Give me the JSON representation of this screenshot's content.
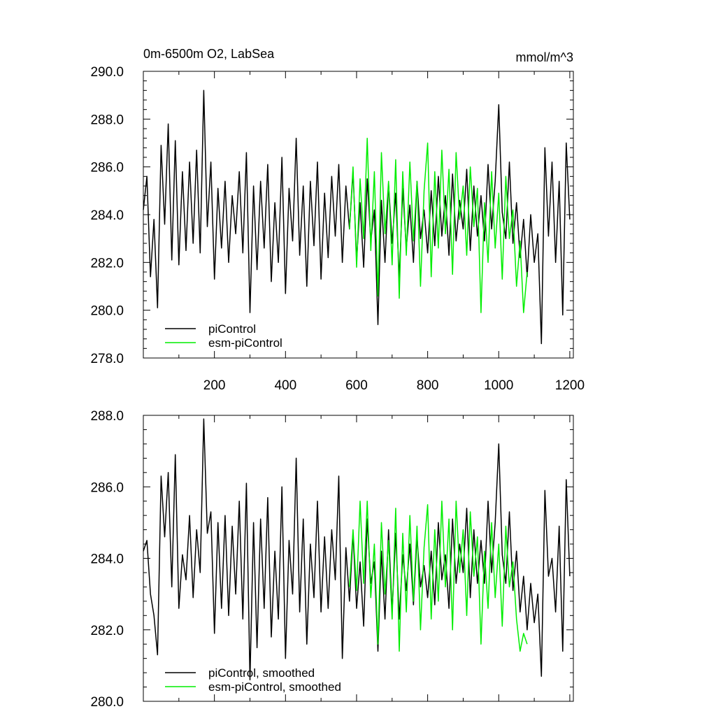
{
  "chart_data": [
    {
      "type": "line",
      "title": "0m-6500m O2, LabSea",
      "units": "mmol/m^3",
      "xlim": [
        0,
        1210
      ],
      "ylim": [
        278.0,
        290.0
      ],
      "yticks": [
        278,
        280,
        282,
        284,
        286,
        288,
        290
      ],
      "ytick_labels": [
        "278.0",
        "280.0",
        "282.0",
        "284.0",
        "286.0",
        "288.0",
        "290.0"
      ],
      "xticks": [
        200,
        400,
        600,
        800,
        1000,
        1200
      ],
      "xtick_labels": [
        "200",
        "400",
        "600",
        "800",
        "1000",
        "1200"
      ],
      "legend_position": "bottom-left",
      "series": [
        {
          "name": "piControl",
          "color": "#000000",
          "x": [
            0,
            10,
            20,
            30,
            40,
            50,
            60,
            70,
            80,
            90,
            100,
            110,
            120,
            130,
            140,
            150,
            160,
            170,
            180,
            190,
            200,
            210,
            220,
            230,
            240,
            250,
            260,
            270,
            280,
            290,
            300,
            310,
            320,
            330,
            340,
            350,
            360,
            370,
            380,
            390,
            400,
            410,
            420,
            430,
            440,
            450,
            460,
            470,
            480,
            490,
            500,
            510,
            520,
            530,
            540,
            550,
            560,
            570,
            580,
            590,
            600,
            610,
            620,
            630,
            640,
            650,
            660,
            670,
            680,
            690,
            700,
            710,
            720,
            730,
            740,
            750,
            760,
            770,
            780,
            790,
            800,
            810,
            820,
            830,
            840,
            850,
            860,
            870,
            880,
            890,
            900,
            910,
            920,
            930,
            940,
            950,
            960,
            970,
            980,
            990,
            1000,
            1010,
            1020,
            1030,
            1040,
            1050,
            1060,
            1070,
            1080,
            1090,
            1100,
            1110,
            1120,
            1130,
            1140,
            1150,
            1160,
            1170,
            1180,
            1190,
            1200
          ],
          "y": [
            284.2,
            285.6,
            281.4,
            283.8,
            280.1,
            286.9,
            283.6,
            287.8,
            282.1,
            287.1,
            281.9,
            285.8,
            282.5,
            286.2,
            282.8,
            286.7,
            282.4,
            289.2,
            283.5,
            286.2,
            281.3,
            285.1,
            282.6,
            285.4,
            282.0,
            284.8,
            283.2,
            285.8,
            282.4,
            286.6,
            279.9,
            285.2,
            281.7,
            285.4,
            282.6,
            286.1,
            281.2,
            284.5,
            282.0,
            286.4,
            280.7,
            285.1,
            282.9,
            287.2,
            282.3,
            285.2,
            281.0,
            285.4,
            282.7,
            286.2,
            281.3,
            284.9,
            282.2,
            285.6,
            283.1,
            286.1,
            282.0,
            285.2,
            283.4,
            285.8,
            282.1,
            284.5,
            281.8,
            285.5,
            282.9,
            284.2,
            279.4,
            284.6,
            282.0,
            285.3,
            282.8,
            284.9,
            281.3,
            285.1,
            282.6,
            284.4,
            282.0,
            285.4,
            283.0,
            284.2,
            282.4,
            285.0,
            282.7,
            285.6,
            283.1,
            284.8,
            282.3,
            285.7,
            282.9,
            284.6,
            283.4,
            285.9,
            282.5,
            285.2,
            283.1,
            284.8,
            282.9,
            286.1,
            283.4,
            285.4,
            288.6,
            284.1,
            283.0,
            286.2,
            282.8,
            284.5,
            282.2,
            283.8,
            281.4,
            284.0,
            282.0,
            283.2,
            278.6,
            286.8,
            283.1,
            286.2,
            282.0,
            285.4,
            279.8,
            287.0,
            283.8
          ]
        },
        {
          "name": "esm-piControl",
          "color": "#00ee00",
          "x": [
            580,
            590,
            600,
            610,
            620,
            630,
            640,
            650,
            660,
            670,
            680,
            690,
            700,
            710,
            720,
            730,
            740,
            750,
            760,
            770,
            780,
            790,
            800,
            810,
            820,
            830,
            840,
            850,
            860,
            870,
            880,
            890,
            900,
            910,
            920,
            930,
            940,
            950,
            960,
            970,
            980,
            990,
            1000,
            1010,
            1020,
            1030,
            1040,
            1050,
            1060,
            1070,
            1080
          ],
          "y": [
            283.4,
            286.0,
            281.8,
            285.5,
            283.0,
            287.2,
            282.5,
            285.8,
            280.6,
            286.6,
            283.2,
            285.4,
            281.9,
            286.3,
            280.5,
            285.8,
            282.3,
            286.2,
            282.9,
            285.4,
            281.0,
            285.0,
            287.0,
            281.4,
            285.8,
            282.6,
            286.7,
            283.2,
            285.9,
            281.5,
            286.6,
            283.8,
            285.2,
            282.3,
            286.0,
            283.5,
            285.1,
            279.9,
            284.5,
            282.0,
            285.8,
            282.6,
            284.9,
            281.3,
            285.6,
            283.0,
            284.2,
            281.0,
            282.9,
            279.9,
            281.6
          ]
        }
      ]
    },
    {
      "type": "line",
      "xlim": [
        0,
        1210
      ],
      "ylim": [
        280.0,
        288.0
      ],
      "yticks": [
        280,
        282,
        284,
        286,
        288
      ],
      "ytick_labels": [
        "280.0",
        "282.0",
        "284.0",
        "286.0",
        "288.0"
      ],
      "xticks": [
        200,
        400,
        600,
        800,
        1000,
        1200
      ],
      "legend_position": "bottom-left",
      "series": [
        {
          "name": "piControl, smoothed",
          "color": "#000000",
          "x": [
            0,
            10,
            20,
            30,
            40,
            50,
            60,
            70,
            80,
            90,
            100,
            110,
            120,
            130,
            140,
            150,
            160,
            170,
            180,
            190,
            200,
            210,
            220,
            230,
            240,
            250,
            260,
            270,
            280,
            290,
            300,
            310,
            320,
            330,
            340,
            350,
            360,
            370,
            380,
            390,
            400,
            410,
            420,
            430,
            440,
            450,
            460,
            470,
            480,
            490,
            500,
            510,
            520,
            530,
            540,
            550,
            560,
            570,
            580,
            590,
            600,
            610,
            620,
            630,
            640,
            650,
            660,
            670,
            680,
            690,
            700,
            710,
            720,
            730,
            740,
            750,
            760,
            770,
            780,
            790,
            800,
            810,
            820,
            830,
            840,
            850,
            860,
            870,
            880,
            890,
            900,
            910,
            920,
            930,
            940,
            950,
            960,
            970,
            980,
            990,
            1000,
            1010,
            1020,
            1030,
            1040,
            1050,
            1060,
            1070,
            1080,
            1090,
            1100,
            1110,
            1120,
            1130,
            1140,
            1150,
            1160,
            1170,
            1180,
            1190,
            1200
          ],
          "y": [
            284.2,
            284.5,
            283.0,
            282.4,
            281.3,
            286.3,
            284.6,
            286.4,
            283.2,
            286.9,
            282.6,
            284.1,
            283.4,
            285.2,
            282.9,
            284.8,
            283.6,
            287.9,
            284.7,
            285.3,
            281.9,
            285.0,
            282.6,
            285.2,
            282.4,
            284.9,
            283.0,
            285.6,
            282.3,
            286.1,
            280.6,
            285.0,
            281.5,
            285.1,
            282.6,
            285.7,
            281.8,
            284.2,
            282.3,
            286.0,
            281.2,
            284.5,
            283.0,
            286.8,
            282.5,
            285.1,
            281.6,
            284.4,
            282.9,
            285.6,
            282.5,
            284.6,
            282.6,
            284.8,
            283.4,
            286.3,
            281.2,
            284.3,
            282.8,
            284.7,
            282.6,
            283.9,
            282.1,
            285.1,
            283.3,
            283.9,
            281.4,
            284.2,
            282.3,
            284.8,
            282.5,
            284.7,
            282.3,
            284.1,
            283.1,
            284.4,
            282.7,
            284.6,
            283.2,
            283.8,
            282.9,
            284.2,
            282.7,
            285.0,
            283.4,
            284.1,
            282.6,
            285.1,
            283.3,
            284.4,
            283.6,
            285.4,
            282.9,
            284.8,
            283.3,
            284.5,
            283.3,
            285.6,
            283.6,
            285.0,
            287.2,
            284.1,
            283.3,
            285.3,
            283.1,
            284.2,
            282.5,
            283.5,
            282.0,
            283.3,
            282.2,
            283.0,
            280.7,
            285.9,
            283.5,
            284.0,
            282.5,
            284.9,
            281.4,
            286.2,
            283.5
          ]
        },
        {
          "name": "esm-piControl, smoothed",
          "color": "#00ee00",
          "x": [
            580,
            590,
            600,
            610,
            620,
            630,
            640,
            650,
            660,
            670,
            680,
            690,
            700,
            710,
            720,
            730,
            740,
            750,
            760,
            770,
            780,
            790,
            800,
            810,
            820,
            830,
            840,
            850,
            860,
            870,
            880,
            890,
            900,
            910,
            920,
            930,
            940,
            950,
            960,
            970,
            980,
            990,
            1000,
            1010,
            1020,
            1030,
            1040,
            1050,
            1060,
            1070,
            1080
          ],
          "y": [
            283.2,
            284.8,
            283.1,
            285.6,
            283.3,
            285.6,
            282.9,
            284.4,
            281.6,
            285.0,
            283.0,
            284.5,
            282.3,
            285.4,
            281.4,
            284.7,
            282.5,
            285.2,
            282.8,
            284.9,
            282.0,
            284.3,
            285.5,
            282.3,
            284.8,
            282.8,
            285.6,
            283.2,
            285.1,
            282.0,
            285.6,
            283.6,
            284.8,
            282.4,
            285.3,
            283.5,
            284.6,
            281.6,
            284.2,
            282.6,
            285.0,
            282.9,
            284.4,
            282.1,
            284.9,
            283.2,
            283.9,
            282.3,
            281.4,
            281.9,
            281.6
          ]
        }
      ]
    }
  ]
}
